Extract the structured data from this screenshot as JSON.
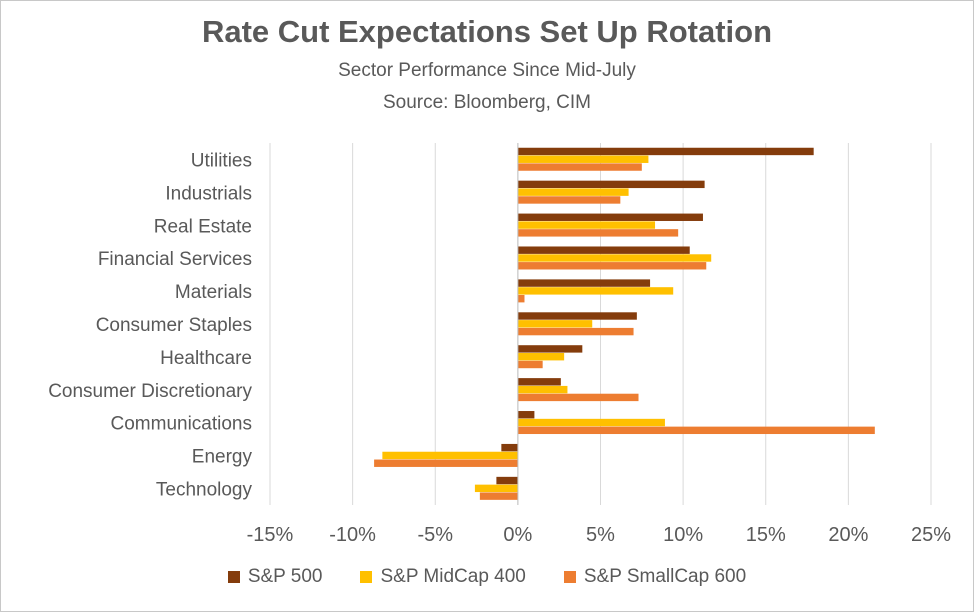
{
  "chart_data": {
    "type": "bar",
    "orientation": "horizontal",
    "title": "Rate Cut Expectations Set Up Rotation",
    "subtitle": "Sector Performance Since Mid-July",
    "source": "Source: Bloomberg, CIM",
    "categories": [
      "Utilities",
      "Industrials",
      "Real Estate",
      "Financial Services",
      "Materials",
      "Consumer Staples",
      "Healthcare",
      "Consumer Discretionary",
      "Communications",
      "Energy",
      "Technology"
    ],
    "series": [
      {
        "name": "S&P 500",
        "color": "#843C0C",
        "values": [
          17.9,
          11.3,
          11.2,
          10.4,
          8.0,
          7.2,
          3.9,
          2.6,
          1.0,
          -1.0,
          -1.3
        ]
      },
      {
        "name": "S&P MidCap 400",
        "color": "#FFC000",
        "values": [
          7.9,
          6.7,
          8.3,
          11.7,
          9.4,
          4.5,
          2.8,
          3.0,
          8.9,
          -8.2,
          -2.6
        ]
      },
      {
        "name": "S&P SmallCap 600",
        "color": "#ED7D31",
        "values": [
          7.5,
          6.2,
          9.7,
          11.4,
          0.4,
          7.0,
          1.5,
          7.3,
          21.6,
          -8.7,
          -2.3
        ]
      }
    ],
    "xlim": [
      -15,
      25
    ],
    "xticks": [
      -15,
      -10,
      -5,
      0,
      5,
      10,
      15,
      20,
      25
    ],
    "xtick_labels": [
      "-15%",
      "-10%",
      "-5%",
      "0%",
      "5%",
      "10%",
      "15%",
      "20%",
      "25%"
    ],
    "grid": "vertical",
    "legend_position": "bottom"
  }
}
